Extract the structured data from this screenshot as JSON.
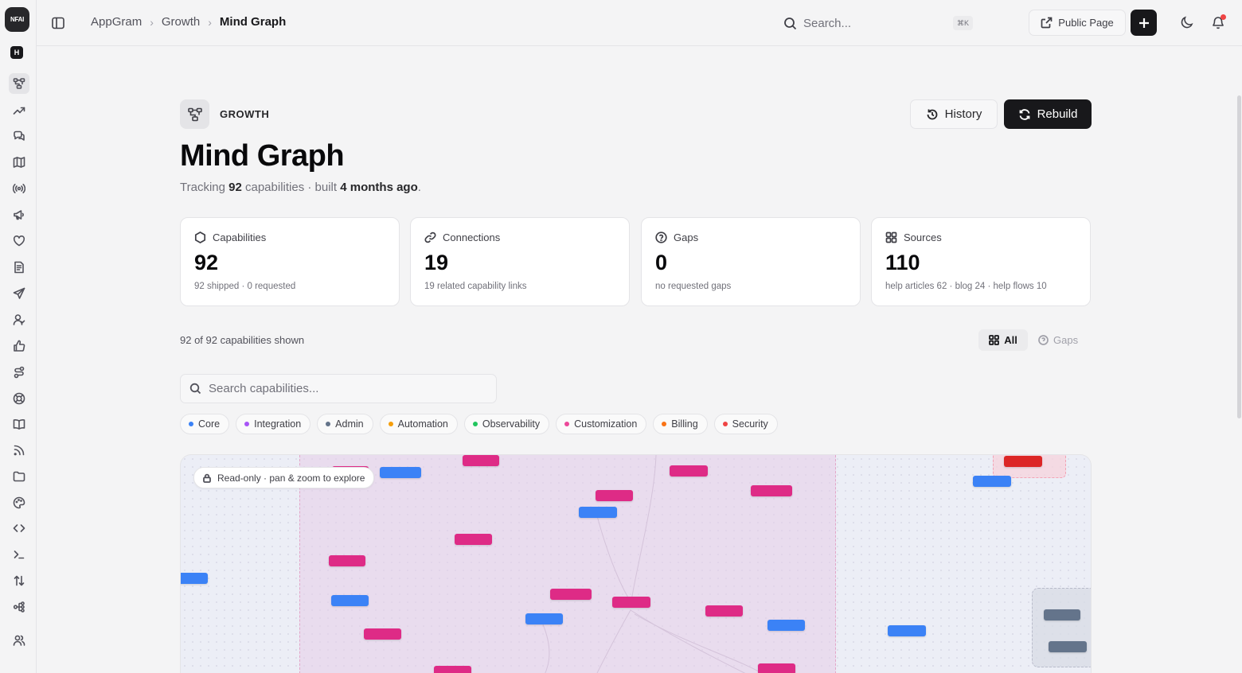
{
  "rail": {
    "logo_text": "NFAI",
    "workspace_letter": "H",
    "icons": [
      "mind-graph-icon",
      "trending-icon",
      "chat-icon",
      "roadmap-icon",
      "broadcast-icon",
      "megaphone-icon",
      "heart-icon",
      "document-icon",
      "send-icon",
      "user-icon",
      "thumbs-up-icon",
      "workflow-icon",
      "support-icon",
      "book-icon",
      "rss-icon",
      "folder-icon",
      "palette-icon",
      "code-icon",
      "terminal-icon",
      "sort-icon",
      "integrations-icon",
      "team-icon"
    ]
  },
  "topbar": {
    "breadcrumb": [
      "AppGram",
      "Growth",
      "Mind Graph"
    ],
    "search_placeholder": "Search...",
    "shortcut": "⌘K",
    "public_page_label": "Public Page"
  },
  "header": {
    "section_label": "GROWTH",
    "title": "Mind Graph",
    "subtitle_prefix": "Tracking",
    "capability_count": "92",
    "subtitle_middle": "capabilities · built",
    "built_ago": "4 months ago",
    "subtitle_suffix": ".",
    "history_label": "History",
    "rebuild_label": "Rebuild"
  },
  "stats": [
    {
      "label": "Capabilities",
      "value": "92",
      "note": "92 shipped · 0 requested",
      "icon": "hexagon-icon"
    },
    {
      "label": "Connections",
      "value": "19",
      "note": "19 related capability links",
      "icon": "link-icon"
    },
    {
      "label": "Gaps",
      "value": "0",
      "note": "no requested gaps",
      "icon": "question-icon"
    },
    {
      "label": "Sources",
      "value": "110",
      "note": "help articles 62 · blog 24 · help flows 10",
      "icon": "grid-icon"
    }
  ],
  "filter": {
    "shown_text": "92 of 92 capabilities shown",
    "view_all": "All",
    "view_gaps": "Gaps",
    "search_placeholder": "Search capabilities...",
    "chips": [
      {
        "label": "Core",
        "color": "#3b82f6"
      },
      {
        "label": "Integration",
        "color": "#a855f7"
      },
      {
        "label": "Admin",
        "color": "#64748b"
      },
      {
        "label": "Automation",
        "color": "#f59e0b"
      },
      {
        "label": "Observability",
        "color": "#22c55e"
      },
      {
        "label": "Customization",
        "color": "#ec4899"
      },
      {
        "label": "Billing",
        "color": "#f97316"
      },
      {
        "label": "Security",
        "color": "#ef4444"
      }
    ]
  },
  "graph": {
    "readonly_label": "Read-only · pan & zoom to explore"
  },
  "colors": {
    "accent_dark": "#18181b",
    "notification": "#ef4444",
    "node_pink": "#de2b86",
    "node_blue": "#3b82f6"
  }
}
